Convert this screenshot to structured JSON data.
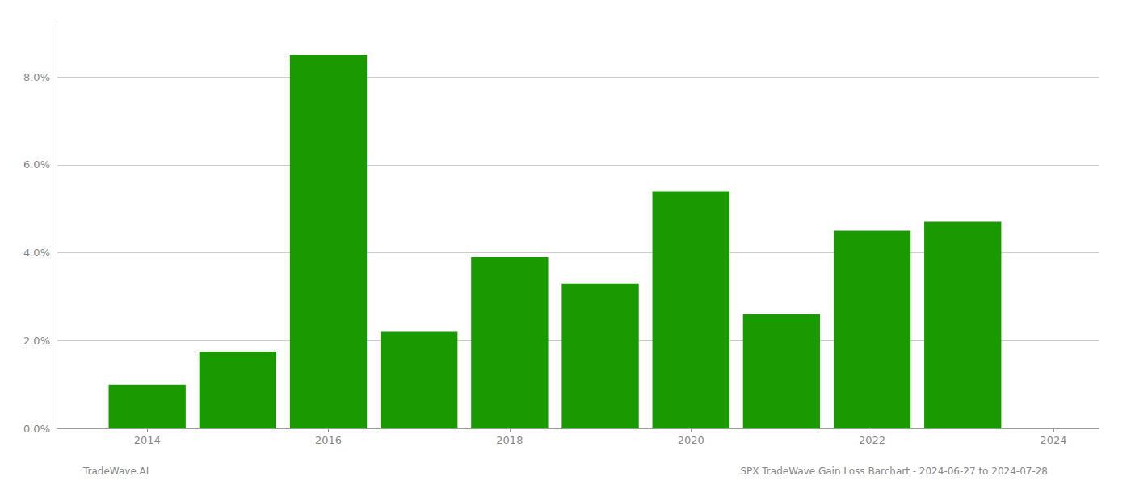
{
  "chart_data": {
    "type": "bar",
    "x": [
      2014,
      2015,
      2016,
      2017,
      2018,
      2019,
      2020,
      2021,
      2022,
      2023
    ],
    "values": [
      0.01,
      0.0175,
      0.085,
      0.022,
      0.039,
      0.033,
      0.054,
      0.026,
      0.045,
      0.047
    ],
    "color": "#1a9a00",
    "xlim": [
      2013,
      2024.5
    ],
    "xticks": [
      2014,
      2016,
      2018,
      2020,
      2022,
      2024
    ],
    "ylim": [
      0,
      0.092
    ],
    "yticks": [
      {
        "value": 0.0,
        "label": "0.0%"
      },
      {
        "value": 0.02,
        "label": "2.0%"
      },
      {
        "value": 0.04,
        "label": "4.0%"
      },
      {
        "value": 0.06,
        "label": "6.0%"
      },
      {
        "value": 0.08,
        "label": "8.0%"
      }
    ],
    "grid": true,
    "annotations": [
      "TradeWave.AI",
      "SPX TradeWave Gain Loss Barchart - 2024-06-27 to 2024-07-28"
    ]
  }
}
